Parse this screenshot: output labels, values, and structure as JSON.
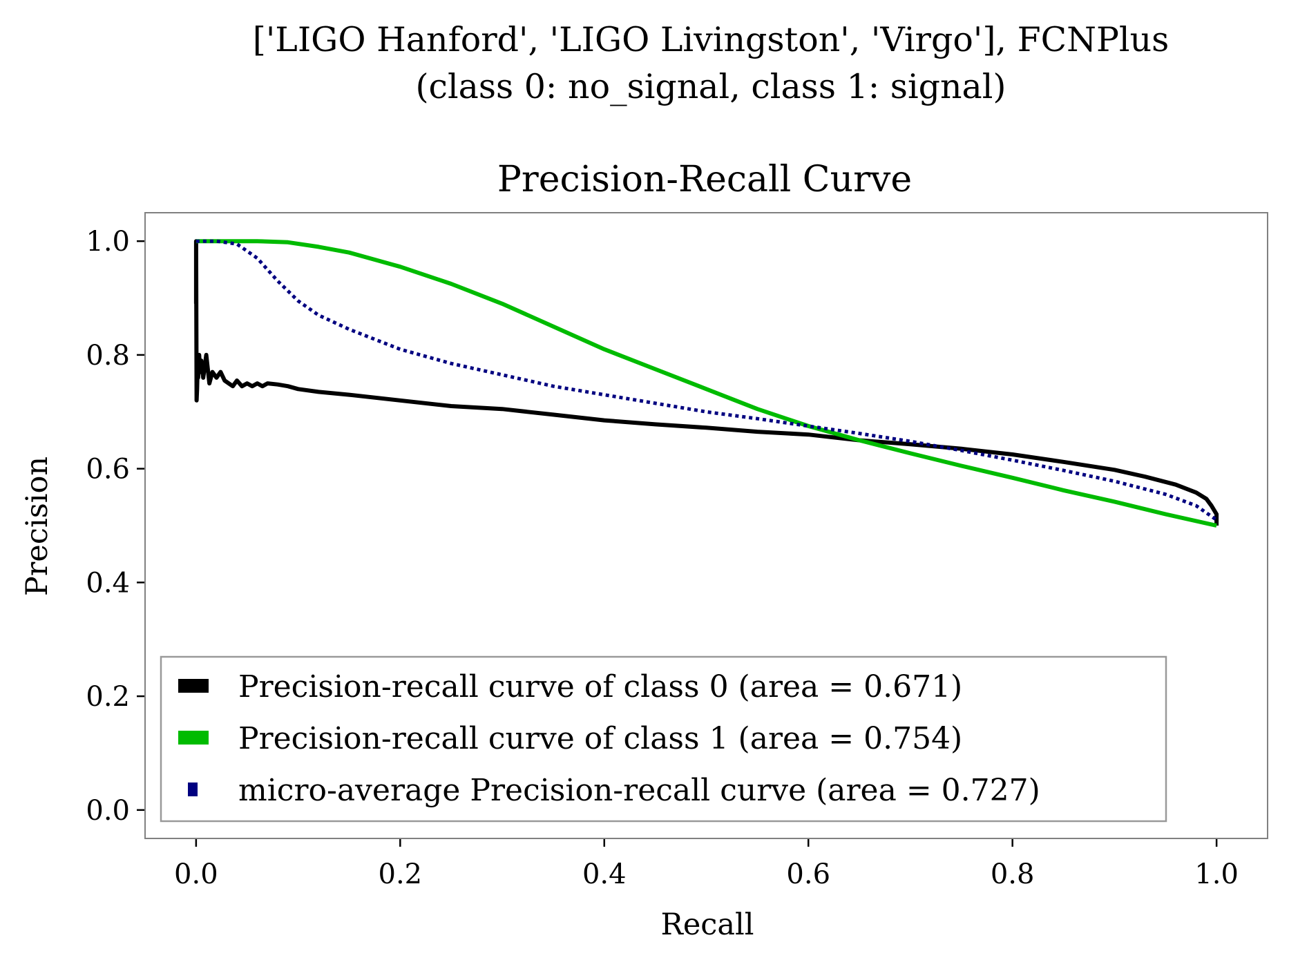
{
  "figure": {
    "suptitle_line1": "['LIGO Hanford', 'LIGO Livingston', 'Virgo'], FCNPlus",
    "suptitle_line2": "(class 0: no_signal, class 1: signal)"
  },
  "chart_data": {
    "type": "line",
    "title": "Precision-Recall Curve",
    "xlabel": "Recall",
    "ylabel": "Precision",
    "xlim": [
      -0.05,
      1.05
    ],
    "ylim": [
      -0.05,
      1.05
    ],
    "xticks": [
      "0.0",
      "0.2",
      "0.4",
      "0.6",
      "0.8",
      "1.0"
    ],
    "yticks": [
      "0.0",
      "0.2",
      "0.4",
      "0.6",
      "0.8",
      "1.0"
    ],
    "grid": false,
    "legend_position": "lower-left",
    "series": [
      {
        "name": "Precision-recall curve of class 0 (area = 0.671)",
        "color": "#000000",
        "style": "solid",
        "x": [
          0.0,
          0.0,
          0.0005,
          0.001,
          0.0015,
          0.002,
          0.003,
          0.004,
          0.005,
          0.007,
          0.01,
          0.013,
          0.016,
          0.02,
          0.024,
          0.028,
          0.032,
          0.036,
          0.04,
          0.045,
          0.05,
          0.055,
          0.06,
          0.065,
          0.07,
          0.08,
          0.09,
          0.1,
          0.12,
          0.15,
          0.2,
          0.25,
          0.3,
          0.35,
          0.4,
          0.45,
          0.5,
          0.55,
          0.6,
          0.65,
          0.7,
          0.75,
          0.8,
          0.85,
          0.9,
          0.93,
          0.96,
          0.98,
          0.99,
          0.995,
          1.0,
          1.0
        ],
        "y": [
          0.89,
          1.0,
          0.72,
          0.74,
          0.78,
          0.76,
          0.8,
          0.77,
          0.79,
          0.76,
          0.8,
          0.75,
          0.77,
          0.76,
          0.77,
          0.755,
          0.75,
          0.745,
          0.755,
          0.745,
          0.75,
          0.745,
          0.75,
          0.745,
          0.75,
          0.748,
          0.745,
          0.74,
          0.735,
          0.73,
          0.72,
          0.71,
          0.705,
          0.695,
          0.685,
          0.678,
          0.672,
          0.665,
          0.66,
          0.65,
          0.643,
          0.635,
          0.625,
          0.612,
          0.598,
          0.586,
          0.572,
          0.558,
          0.547,
          0.535,
          0.52,
          0.5
        ]
      },
      {
        "name": "Precision-recall curve of class 1 (area = 0.754)",
        "color": "#00bb00",
        "style": "solid",
        "x": [
          0.0,
          0.0,
          0.03,
          0.06,
          0.09,
          0.12,
          0.15,
          0.18,
          0.2,
          0.25,
          0.3,
          0.35,
          0.4,
          0.45,
          0.5,
          0.55,
          0.6,
          0.65,
          0.7,
          0.75,
          0.8,
          0.85,
          0.9,
          0.95,
          1.0
        ],
        "y": [
          1.0,
          1.0,
          1.0,
          1.0,
          0.998,
          0.99,
          0.98,
          0.965,
          0.955,
          0.925,
          0.89,
          0.85,
          0.81,
          0.775,
          0.74,
          0.705,
          0.675,
          0.65,
          0.627,
          0.605,
          0.584,
          0.562,
          0.542,
          0.52,
          0.5
        ]
      },
      {
        "name": "micro-average Precision-recall curve (area = 0.727)",
        "color": "#000080",
        "style": "dotted",
        "x": [
          0.0,
          0.02,
          0.04,
          0.06,
          0.08,
          0.1,
          0.12,
          0.15,
          0.2,
          0.25,
          0.3,
          0.35,
          0.4,
          0.45,
          0.5,
          0.55,
          0.6,
          0.65,
          0.7,
          0.75,
          0.8,
          0.85,
          0.9,
          0.95,
          0.98,
          1.0
        ],
        "y": [
          1.0,
          1.0,
          0.995,
          0.97,
          0.93,
          0.895,
          0.87,
          0.845,
          0.81,
          0.785,
          0.765,
          0.745,
          0.73,
          0.715,
          0.7,
          0.688,
          0.675,
          0.662,
          0.648,
          0.632,
          0.615,
          0.597,
          0.578,
          0.555,
          0.535,
          0.51
        ]
      }
    ]
  }
}
